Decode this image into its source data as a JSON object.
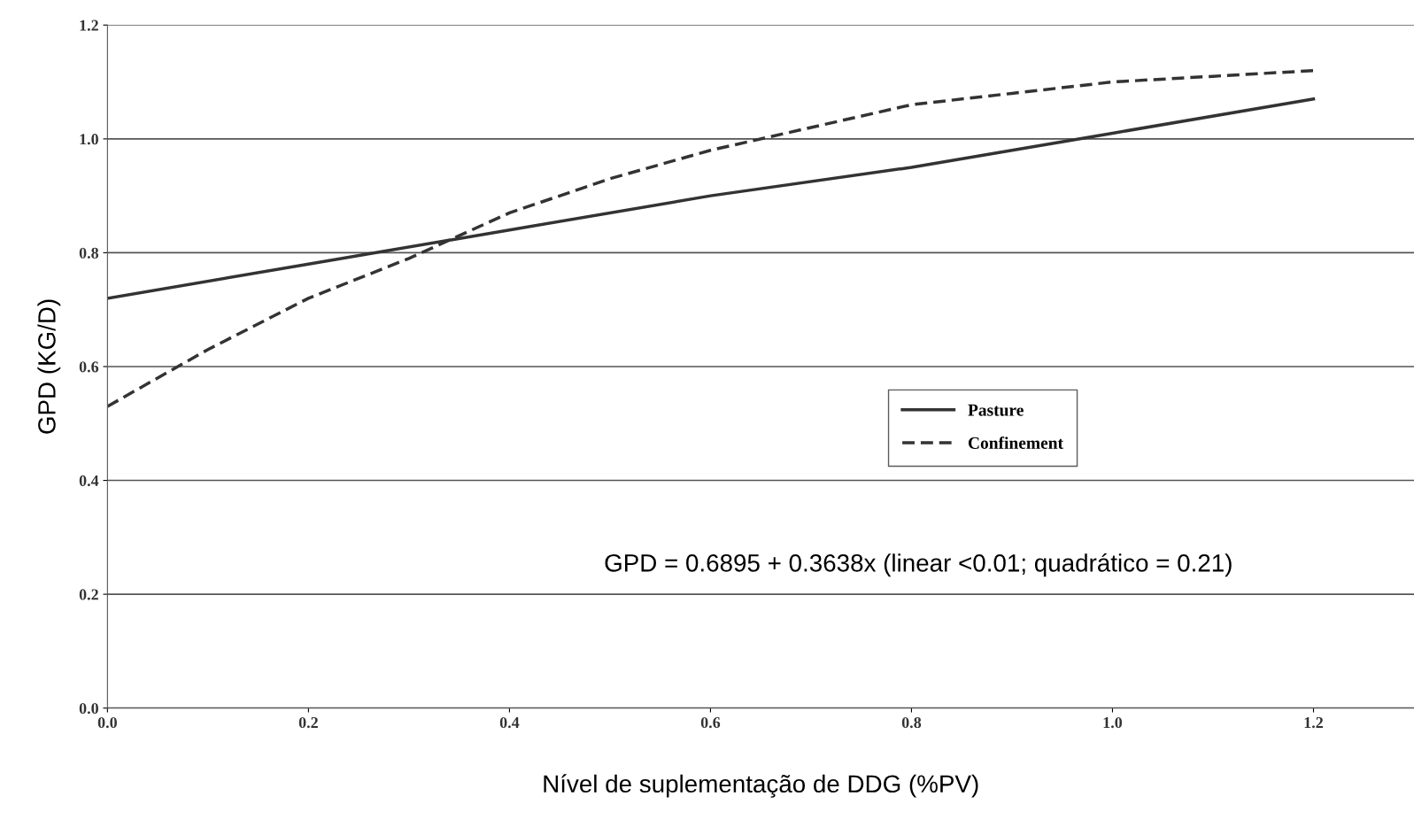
{
  "chart_data": {
    "type": "line",
    "xlabel": "Nível de suplementação de DDG (%PV)",
    "ylabel": "GPD (KG/D)",
    "series": [
      {
        "name": "Pasture",
        "color": "#333333",
        "line_style": "solid",
        "x": [
          0,
          0.2,
          0.4,
          0.6,
          0.8,
          1.0,
          1.2
        ],
        "values": [
          0.72,
          0.78,
          0.84,
          0.9,
          0.95,
          1.01,
          1.07
        ]
      },
      {
        "name": "Confinement",
        "color": "#333333",
        "line_style": "dashed",
        "x": [
          0,
          0.1,
          0.2,
          0.3,
          0.4,
          0.5,
          0.6,
          0.7,
          0.8,
          0.9,
          1.0,
          1.1,
          1.2
        ],
        "values": [
          0.53,
          0.63,
          0.72,
          0.79,
          0.87,
          0.93,
          0.98,
          1.02,
          1.06,
          1.08,
          1.1,
          1.11,
          1.12
        ]
      }
    ],
    "xlim": [
      0,
      1.3
    ],
    "ylim": [
      0,
      1.2
    ],
    "xticks": [
      {
        "value": 0,
        "label": "0.0"
      },
      0.2,
      0.4,
      0.6,
      0.8,
      {
        "value": 1.0,
        "label": "1.0"
      },
      1.2
    ],
    "yticks": [
      {
        "value": 0,
        "label": "0.0"
      },
      0.2,
      0.4,
      0.6,
      0.8,
      {
        "value": 1.0,
        "label": "1.0"
      },
      1.2
    ],
    "grid": "y",
    "legend": "center",
    "marker": "none",
    "annotations": [
      "GPD = 0.6895 + 0.3638x (linear <0.01; quadrático = 0.21)"
    ]
  }
}
